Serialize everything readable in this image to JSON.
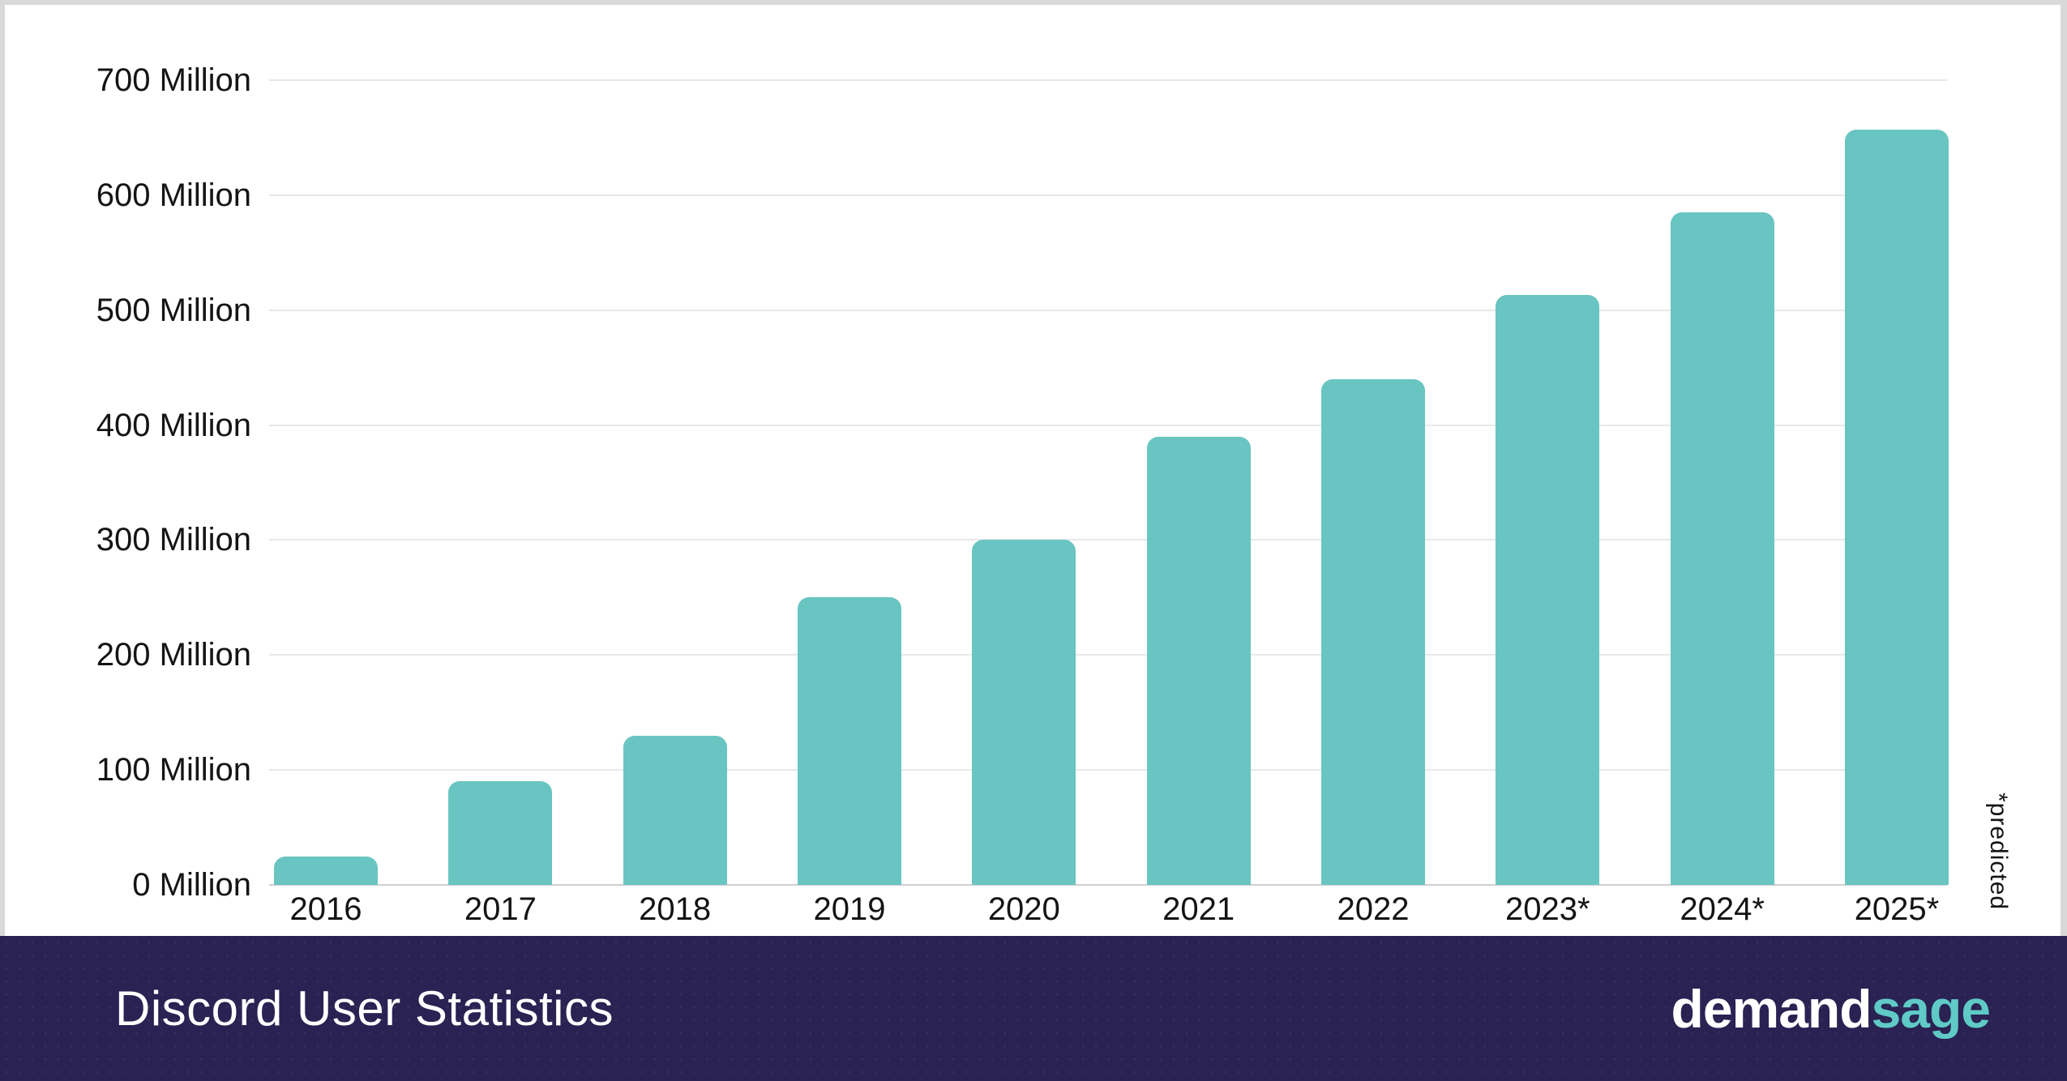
{
  "chart_data": {
    "type": "bar",
    "title": "Discord User Statistics",
    "categories": [
      "2016",
      "2017",
      "2018",
      "2019",
      "2020",
      "2021",
      "2022",
      "2023*",
      "2024*",
      "2025*"
    ],
    "values": [
      25,
      90,
      130,
      250,
      300,
      390,
      440,
      513,
      585,
      657
    ],
    "unit": "Million",
    "ytick_labels": [
      "0 Million",
      "100 Million",
      "200 Million",
      "300 Million",
      "400 Million",
      "500 Million",
      "600 Million",
      "700 Million"
    ],
    "ytick_values": [
      0,
      100,
      200,
      300,
      400,
      500,
      600,
      700
    ],
    "ylim": [
      0,
      700
    ],
    "grid": true,
    "legend": "none",
    "note": "*predicted",
    "bar_color": "#69c5c1"
  },
  "footer": {
    "title": "Discord User Statistics",
    "brand": {
      "part1": "demand",
      "part2": "sage"
    }
  },
  "colors": {
    "bar": "#69c5c1",
    "footer_bg": "#292252",
    "brand_teal": "#5fcac6",
    "frame": "#d9d9d9",
    "gridline": "#e8e8e8",
    "baseline": "#cfcfcf",
    "axis_text": "#141414",
    "card_bg": "#ffffff",
    "title_text": "#ffffff"
  }
}
